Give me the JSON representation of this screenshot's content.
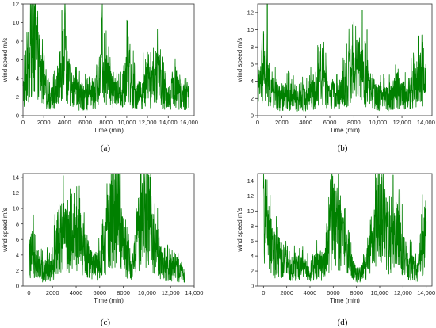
{
  "figure": {
    "series_color": "#008000"
  },
  "chart_data": [
    {
      "type": "line",
      "panel_label": "(a)",
      "xlabel": "Time (min)",
      "ylabel": "wind speed m/s",
      "xlim": [
        0,
        16500
      ],
      "ylim": [
        0,
        12
      ],
      "xticks": [
        0,
        2000,
        4000,
        6000,
        8000,
        10000,
        12000,
        14000,
        16000
      ],
      "xtick_labels": [
        "0",
        "2000",
        "4000",
        "6000",
        "8000",
        "10,000",
        "12,000",
        "14,000",
        "16,000"
      ],
      "yticks": [
        0,
        2,
        4,
        6,
        8,
        10,
        12
      ],
      "ytick_labels": [
        "0",
        "2",
        "4",
        "6",
        "8",
        "10",
        "12"
      ],
      "series": [
        {
          "color": "#008000",
          "x": [
            0,
            400,
            800,
            1200,
            1600,
            2000,
            2400,
            2800,
            3200,
            3600,
            4000,
            4400,
            4800,
            5200,
            5600,
            6000,
            6400,
            6800,
            7200,
            7600,
            8000,
            8400,
            8800,
            9200,
            9600,
            10000,
            10400,
            10800,
            11200,
            11600,
            12000,
            12400,
            12800,
            13200,
            13600,
            14000,
            14400,
            14800,
            15200,
            15600,
            16000
          ],
          "y": [
            2.5,
            4.0,
            7.0,
            8.0,
            5.5,
            3.0,
            2.2,
            2.0,
            2.4,
            5.0,
            7.5,
            4.0,
            2.2,
            2.5,
            2.0,
            2.2,
            2.5,
            2.2,
            2.8,
            6.5,
            4.5,
            3.0,
            2.5,
            2.3,
            3.0,
            5.5,
            4.0,
            2.5,
            2.2,
            3.0,
            3.5,
            3.0,
            4.5,
            3.5,
            2.5,
            2.0,
            2.5,
            3.0,
            2.2,
            2.0,
            2.5
          ],
          "peaks": [
            {
              "x": 1100,
              "y": 11.7
            },
            {
              "x": 3750,
              "y": 11.3
            },
            {
              "x": 7600,
              "y": 10.4
            },
            {
              "x": 10050,
              "y": 10.2
            }
          ]
        }
      ]
    },
    {
      "type": "line",
      "panel_label": "(b)",
      "xlabel": "Time (min)",
      "ylabel": "wind speed m/s",
      "xlim": [
        0,
        14500
      ],
      "ylim": [
        0,
        13
      ],
      "xticks": [
        0,
        2000,
        4000,
        6000,
        8000,
        10000,
        12000,
        14000
      ],
      "xtick_labels": [
        "0",
        "2000",
        "4000",
        "6000",
        "8000",
        "10,000",
        "12,000",
        "14,000"
      ],
      "yticks": [
        0,
        2,
        4,
        6,
        8,
        10,
        12
      ],
      "ytick_labels": [
        "0",
        "2",
        "4",
        "6",
        "8",
        "10",
        "12"
      ],
      "series": [
        {
          "color": "#008000",
          "x": [
            0,
            400,
            800,
            1200,
            1600,
            2000,
            2400,
            2800,
            3200,
            3600,
            4000,
            4400,
            4800,
            5200,
            5600,
            6000,
            6400,
            6800,
            7200,
            7600,
            8000,
            8400,
            8800,
            9200,
            9600,
            10000,
            10400,
            10800,
            11200,
            11600,
            12000,
            12400,
            12800,
            13200,
            13600,
            14000
          ],
          "y": [
            2.5,
            5.0,
            4.0,
            3.0,
            2.2,
            2.0,
            2.5,
            2.2,
            2.0,
            2.3,
            2.0,
            2.5,
            3.0,
            4.5,
            3.5,
            2.5,
            2.2,
            2.5,
            3.5,
            4.5,
            5.0,
            5.5,
            4.5,
            3.0,
            2.5,
            2.2,
            2.5,
            2.0,
            2.3,
            3.0,
            2.5,
            2.2,
            3.0,
            4.0,
            4.5,
            3.0
          ],
          "peaks": [
            {
              "x": 800,
              "y": 13.0
            },
            {
              "x": 500,
              "y": 9.5
            },
            {
              "x": 8700,
              "y": 12.3
            },
            {
              "x": 9100,
              "y": 10.0
            },
            {
              "x": 13350,
              "y": 9.3
            }
          ]
        }
      ]
    },
    {
      "type": "line",
      "panel_label": "(c)",
      "xlabel": "Time (min)",
      "ylabel": "wind speed m/s",
      "xlim": [
        -500,
        14000
      ],
      "ylim": [
        0,
        14.5
      ],
      "xticks": [
        0,
        2000,
        4000,
        6000,
        8000,
        10000,
        12000,
        14000
      ],
      "xtick_labels": [
        "0",
        "2000",
        "4000",
        "6000",
        "8000",
        "10,000",
        "12,000",
        "14,000"
      ],
      "yticks": [
        0,
        2,
        4,
        6,
        8,
        10,
        12,
        14
      ],
      "ytick_labels": [
        "0",
        "2",
        "4",
        "6",
        "8",
        "10",
        "12",
        "14"
      ],
      "series": [
        {
          "color": "#008000",
          "x": [
            0,
            400,
            800,
            1200,
            1600,
            2000,
            2400,
            2800,
            3200,
            3600,
            4000,
            4400,
            4800,
            5200,
            5600,
            6000,
            6400,
            6800,
            7200,
            7600,
            8000,
            8400,
            8800,
            9200,
            9600,
            10000,
            10400,
            10800,
            11200,
            11600,
            12000,
            12400,
            12800,
            13200
          ],
          "y": [
            3.5,
            4.5,
            2.5,
            2.0,
            2.5,
            2.5,
            6.0,
            7.0,
            6.0,
            5.5,
            6.5,
            5.5,
            4.0,
            3.0,
            2.5,
            3.0,
            5.0,
            8.0,
            9.5,
            7.5,
            5.0,
            3.5,
            2.5,
            6.0,
            8.0,
            9.5,
            7.0,
            5.0,
            3.0,
            2.5,
            2.0,
            2.5,
            2.0,
            1.5
          ],
          "peaks": [
            {
              "x": 3850,
              "y": 12.0
            },
            {
              "x": 7100,
              "y": 13.0
            },
            {
              "x": 10150,
              "y": 14.3
            }
          ]
        }
      ]
    },
    {
      "type": "line",
      "panel_label": "(d)",
      "xlabel": "Time (min)",
      "ylabel": "wind speed m/s",
      "xlim": [
        -500,
        14500
      ],
      "ylim": [
        0,
        15
      ],
      "xticks": [
        0,
        2000,
        4000,
        6000,
        8000,
        10000,
        12000,
        14000
      ],
      "xtick_labels": [
        "0",
        "2000",
        "4000",
        "6000",
        "8000",
        "10,000",
        "12,000",
        "14,000"
      ],
      "yticks": [
        0,
        2,
        4,
        6,
        8,
        10,
        12,
        14
      ],
      "ytick_labels": [
        "0",
        "2",
        "4",
        "6",
        "8",
        "10",
        "12",
        "14"
      ],
      "series": [
        {
          "color": "#008000",
          "x": [
            0,
            400,
            800,
            1200,
            1600,
            2000,
            2400,
            2800,
            3200,
            3600,
            4000,
            4400,
            4800,
            5200,
            5600,
            6000,
            6400,
            6800,
            7200,
            7600,
            8000,
            8400,
            8800,
            9200,
            9600,
            10000,
            10400,
            10800,
            11200,
            11600,
            12000,
            12400,
            12800,
            13200,
            13600,
            14000
          ],
          "y": [
            9.0,
            6.0,
            4.5,
            4.0,
            3.5,
            3.0,
            2.5,
            2.5,
            2.5,
            2.0,
            2.0,
            2.5,
            3.0,
            2.5,
            6.0,
            8.5,
            7.5,
            6.0,
            4.0,
            2.5,
            1.5,
            1.5,
            2.5,
            6.0,
            8.0,
            9.5,
            8.0,
            6.0,
            5.5,
            7.0,
            4.5,
            3.0,
            2.5,
            2.0,
            5.0,
            7.0
          ],
          "peaks": [
            {
              "x": 150,
              "y": 14.2
            },
            {
              "x": 6100,
              "y": 11.0
            },
            {
              "x": 10050,
              "y": 13.6
            },
            {
              "x": 11150,
              "y": 14.8
            },
            {
              "x": 13700,
              "y": 12.2
            }
          ]
        }
      ]
    }
  ]
}
